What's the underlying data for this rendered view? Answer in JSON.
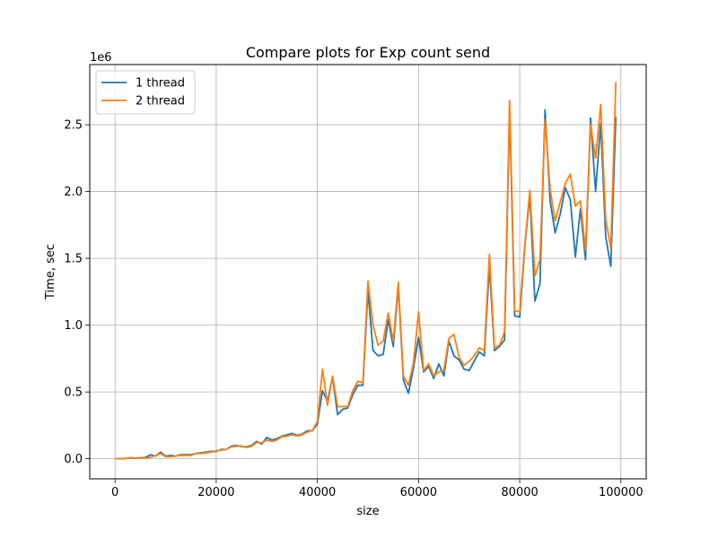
{
  "chart_data": {
    "type": "line",
    "title": "Compare plots for Exp count send",
    "xlabel": "size",
    "ylabel": "Time, sec",
    "y_scale_label": "1e6",
    "xlim": [
      -5000,
      105000
    ],
    "ylim": [
      -150000,
      2950000
    ],
    "x_ticks": [
      0,
      20000,
      40000,
      60000,
      80000,
      100000
    ],
    "x_tick_labels": [
      "0",
      "20000",
      "40000",
      "60000",
      "80000",
      "100000"
    ],
    "y_ticks": [
      0,
      500000,
      1000000,
      1500000,
      2000000,
      2500000
    ],
    "y_tick_labels": [
      "0.0",
      "0.5",
      "1.0",
      "1.5",
      "2.0",
      "2.5"
    ],
    "grid": true,
    "legend_position": "upper-left",
    "x": [
      0,
      1000,
      2000,
      3000,
      4000,
      5000,
      6000,
      7000,
      8000,
      9000,
      10000,
      11000,
      12000,
      13000,
      14000,
      15000,
      16000,
      17000,
      18000,
      19000,
      20000,
      21000,
      22000,
      23000,
      24000,
      25000,
      26000,
      27000,
      28000,
      29000,
      30000,
      31000,
      32000,
      33000,
      34000,
      35000,
      36000,
      37000,
      38000,
      39000,
      40000,
      41000,
      42000,
      43000,
      44000,
      45000,
      46000,
      47000,
      48000,
      49000,
      50000,
      51000,
      52000,
      53000,
      54000,
      55000,
      56000,
      57000,
      58000,
      59000,
      60000,
      61000,
      62000,
      63000,
      64000,
      65000,
      66000,
      67000,
      68000,
      69000,
      70000,
      71000,
      72000,
      73000,
      74000,
      75000,
      76000,
      77000,
      78000,
      79000,
      80000,
      81000,
      82000,
      83000,
      84000,
      85000,
      86000,
      87000,
      88000,
      89000,
      90000,
      91000,
      92000,
      93000,
      94000,
      95000,
      96000,
      97000,
      98000,
      99000
    ],
    "series": [
      {
        "name": "1 thread",
        "color": "#1f77b4",
        "values": [
          0,
          0,
          2000,
          8000,
          5000,
          6000,
          10000,
          30000,
          20000,
          50000,
          20000,
          25000,
          20000,
          30000,
          30000,
          30000,
          40000,
          45000,
          50000,
          55000,
          55000,
          70000,
          70000,
          95000,
          100000,
          90000,
          90000,
          100000,
          130000,
          110000,
          160000,
          140000,
          150000,
          170000,
          180000,
          190000,
          175000,
          185000,
          210000,
          210000,
          260000,
          510000,
          430000,
          610000,
          330000,
          370000,
          380000,
          480000,
          550000,
          550000,
          1260000,
          810000,
          770000,
          780000,
          1040000,
          840000,
          1290000,
          590000,
          490000,
          680000,
          910000,
          650000,
          690000,
          600000,
          710000,
          620000,
          880000,
          770000,
          740000,
          670000,
          660000,
          730000,
          800000,
          770000,
          1440000,
          810000,
          840000,
          890000,
          2620000,
          1070000,
          1060000,
          1590000,
          1970000,
          1180000,
          1310000,
          2610000,
          1930000,
          1690000,
          1830000,
          2030000,
          1940000,
          1510000,
          1870000,
          1490000,
          2550000,
          2000000,
          2510000,
          1660000,
          1440000,
          2560000
        ]
      },
      {
        "name": "2 thread",
        "color": "#ff7f0e",
        "values": [
          0,
          0,
          3000,
          5000,
          5000,
          8000,
          5000,
          10000,
          25000,
          40000,
          15000,
          15000,
          20000,
          25000,
          25000,
          25000,
          40000,
          40000,
          45000,
          50000,
          60000,
          65000,
          70000,
          90000,
          95000,
          95000,
          85000,
          95000,
          120000,
          120000,
          140000,
          130000,
          140000,
          165000,
          170000,
          180000,
          170000,
          180000,
          200000,
          210000,
          280000,
          670000,
          400000,
          620000,
          390000,
          390000,
          390000,
          510000,
          580000,
          570000,
          1330000,
          1000000,
          850000,
          880000,
          1090000,
          880000,
          1320000,
          620000,
          550000,
          720000,
          1100000,
          660000,
          710000,
          620000,
          650000,
          660000,
          900000,
          930000,
          760000,
          700000,
          730000,
          770000,
          830000,
          810000,
          1530000,
          830000,
          850000,
          950000,
          2680000,
          1110000,
          1100000,
          1600000,
          2010000,
          1370000,
          1490000,
          2540000,
          2020000,
          1780000,
          1920000,
          2060000,
          2130000,
          1890000,
          1930000,
          1560000,
          2500000,
          2250000,
          2650000,
          1790000,
          1580000,
          2820000
        ]
      }
    ]
  }
}
